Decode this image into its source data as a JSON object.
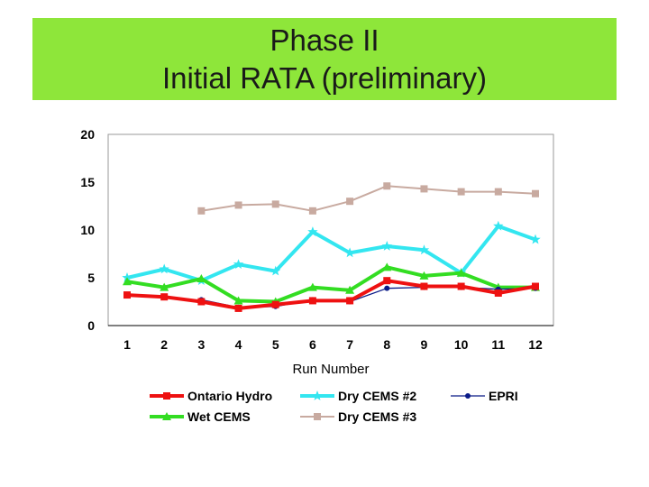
{
  "slide": {
    "title_line1": "Phase II",
    "title_line2": "Initial RATA (preliminary)",
    "title_band_color": "#8ee63a"
  },
  "chart_data": {
    "type": "line",
    "title": "",
    "xlabel": "Run Number",
    "ylabel": "",
    "categories": [
      "1",
      "2",
      "3",
      "4",
      "5",
      "6",
      "7",
      "8",
      "9",
      "10",
      "11",
      "12"
    ],
    "ylim": [
      0,
      20
    ],
    "yticks": [
      "0",
      "5",
      "10",
      "15",
      "20"
    ],
    "grid": false,
    "legend_position": "bottom",
    "series": [
      {
        "name": "Dry CEMS #3",
        "color": "#c8aaa0",
        "marker": "square",
        "values": [
          null,
          null,
          12.0,
          12.6,
          12.7,
          12.0,
          13.0,
          14.6,
          14.3,
          14.0,
          14.0,
          13.8
        ]
      },
      {
        "name": "Dry CEMS #2",
        "color": "#33e6f0",
        "marker": "star",
        "values": [
          5.0,
          5.9,
          4.7,
          6.4,
          5.7,
          9.8,
          7.6,
          8.3,
          7.9,
          5.5,
          10.4,
          9.0
        ]
      },
      {
        "name": "Wet CEMS",
        "color": "#33dd22",
        "marker": "triangle",
        "values": [
          4.6,
          4.0,
          4.9,
          2.6,
          2.5,
          4.0,
          3.7,
          6.1,
          5.2,
          5.5,
          4.0,
          4.0
        ]
      },
      {
        "name": "EPRI",
        "color": "#0a1a88",
        "marker": "circle",
        "values": [
          null,
          null,
          2.7,
          1.9,
          2.0,
          2.7,
          2.5,
          3.9,
          4.0,
          4.0,
          3.8,
          3.9
        ]
      },
      {
        "name": "Ontario Hydro",
        "color": "#ee1111",
        "marker": "square",
        "values": [
          3.2,
          3.0,
          2.5,
          1.8,
          2.2,
          2.6,
          2.6,
          4.7,
          4.1,
          4.1,
          3.4,
          4.1
        ]
      }
    ],
    "legend_order": [
      "Ontario Hydro",
      "Dry CEMS #2",
      "EPRI",
      "Wet CEMS",
      "Dry CEMS #3"
    ]
  }
}
